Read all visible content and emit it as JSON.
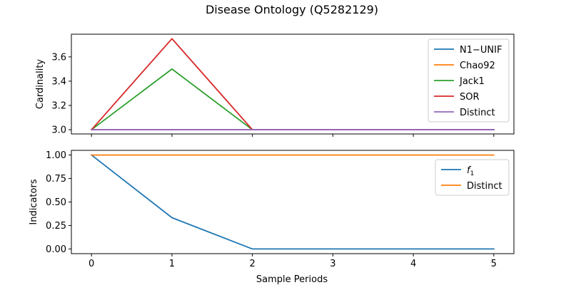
{
  "chart_data": {
    "title": "Disease Ontology (Q5282129)",
    "xlabel": "Sample Periods",
    "x": [
      0,
      1,
      2,
      3,
      4,
      5
    ],
    "xticks": [
      "0",
      "1",
      "2",
      "3",
      "4",
      "5"
    ],
    "panels": [
      {
        "type": "line",
        "ylabel": "Cardinality",
        "ylim": [
          2.965,
          3.787
        ],
        "yticks": [
          "3.0",
          "3.2",
          "3.4",
          "3.6"
        ],
        "legend_position": "upper right",
        "series": [
          {
            "name": "N1−UNIF",
            "color": "#1f77b4",
            "values": [
              3.0,
              3.0,
              3.0,
              3.0,
              3.0,
              3.0
            ]
          },
          {
            "name": "Chao92",
            "color": "#ff7f0e",
            "values": [
              3.0,
              3.0,
              3.0,
              3.0,
              3.0,
              3.0
            ]
          },
          {
            "name": "Jack1",
            "color": "#2ca02c",
            "values": [
              3.0,
              3.5,
              3.0,
              3.0,
              3.0,
              3.0
            ]
          },
          {
            "name": "SOR",
            "color": "#d62728",
            "values": [
              3.0,
              3.75,
              3.0,
              3.0,
              3.0,
              3.0
            ]
          },
          {
            "name": "Distinct",
            "color": "#9467bd",
            "values": [
              3.0,
              3.0,
              3.0,
              3.0,
              3.0,
              3.0
            ]
          }
        ]
      },
      {
        "type": "line",
        "ylabel": "Indicators",
        "ylim": [
          -0.05,
          1.05
        ],
        "yticks": [
          "0.00",
          "0.25",
          "0.50",
          "0.75",
          "1.00"
        ],
        "legend_position": "upper right",
        "series": [
          {
            "name": "f",
            "subscript": "1",
            "color": "#1f77b4",
            "values": [
              1.0,
              0.333,
              0.0,
              0.0,
              0.0,
              0.0
            ]
          },
          {
            "name": "Distinct",
            "color": "#ff7f0e",
            "values": [
              1.0,
              1.0,
              1.0,
              1.0,
              1.0,
              1.0
            ]
          }
        ]
      }
    ]
  }
}
